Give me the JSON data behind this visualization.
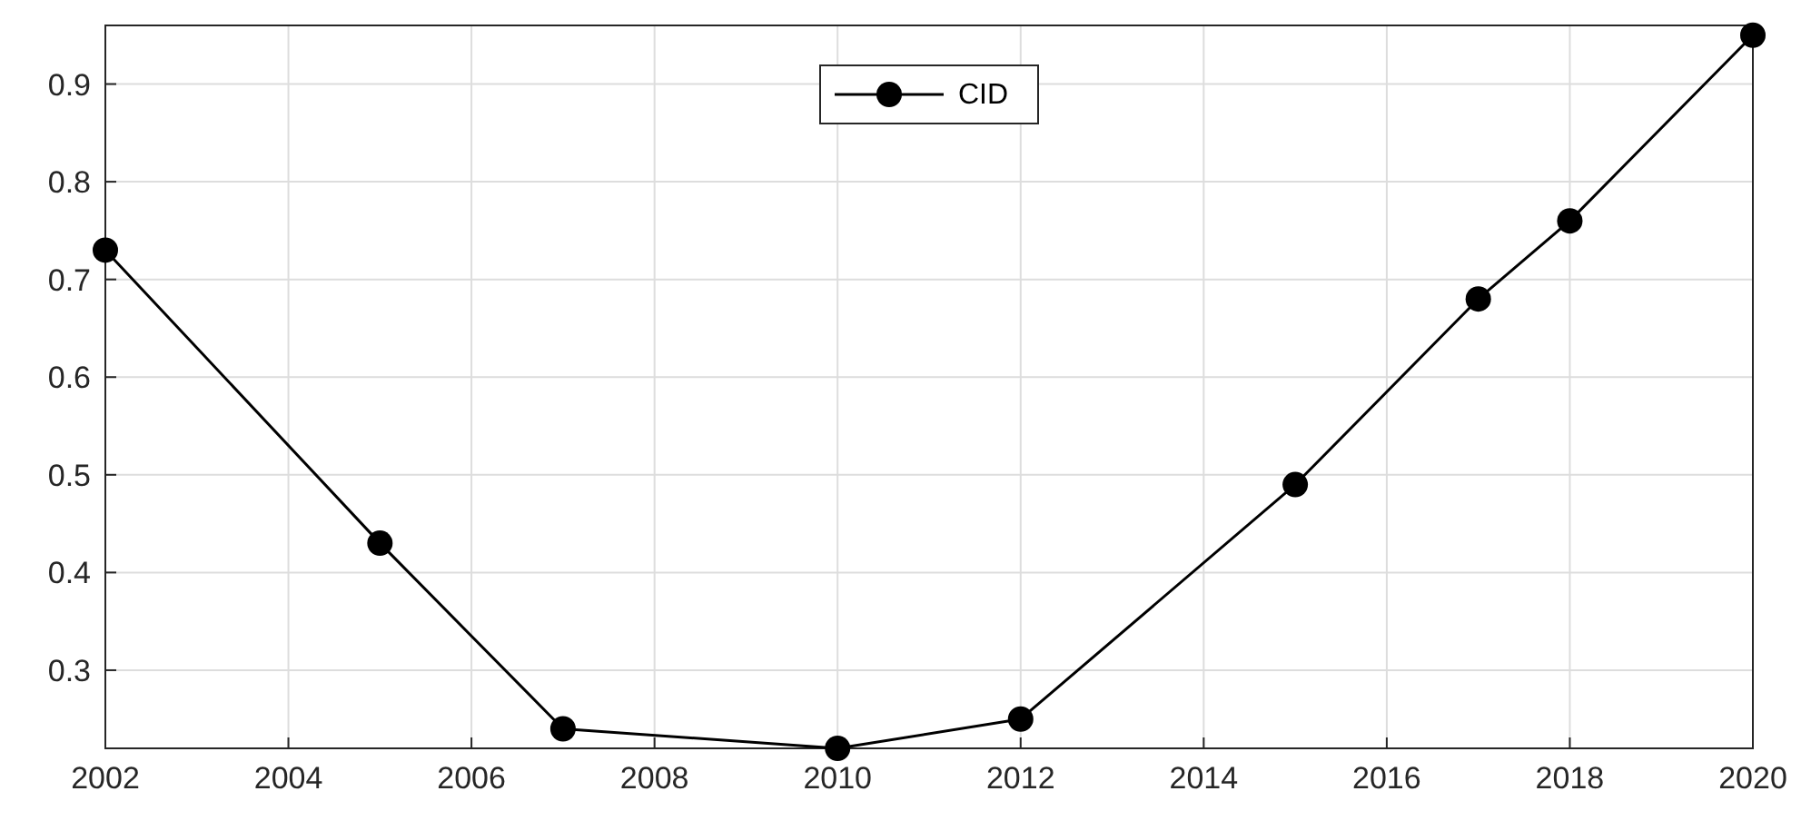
{
  "chart_data": {
    "type": "line",
    "x": [
      2002,
      2005,
      2007,
      2010,
      2012,
      2015,
      2017,
      2018,
      2020
    ],
    "series": [
      {
        "name": "CID",
        "color": "#000000",
        "values": [
          0.73,
          0.43,
          0.24,
          0.22,
          0.25,
          0.49,
          0.68,
          0.76,
          0.95
        ]
      }
    ],
    "xlim": [
      2002,
      2020
    ],
    "xticks": [
      2002,
      2004,
      2006,
      2008,
      2010,
      2012,
      2014,
      2016,
      2018,
      2020
    ],
    "ylim": [
      0.22,
      0.96
    ],
    "yticks": [
      0.3,
      0.4,
      0.5,
      0.6,
      0.7,
      0.8,
      0.9
    ],
    "grid": true,
    "legend": "top",
    "marker": "circle",
    "line_style": "solid"
  }
}
